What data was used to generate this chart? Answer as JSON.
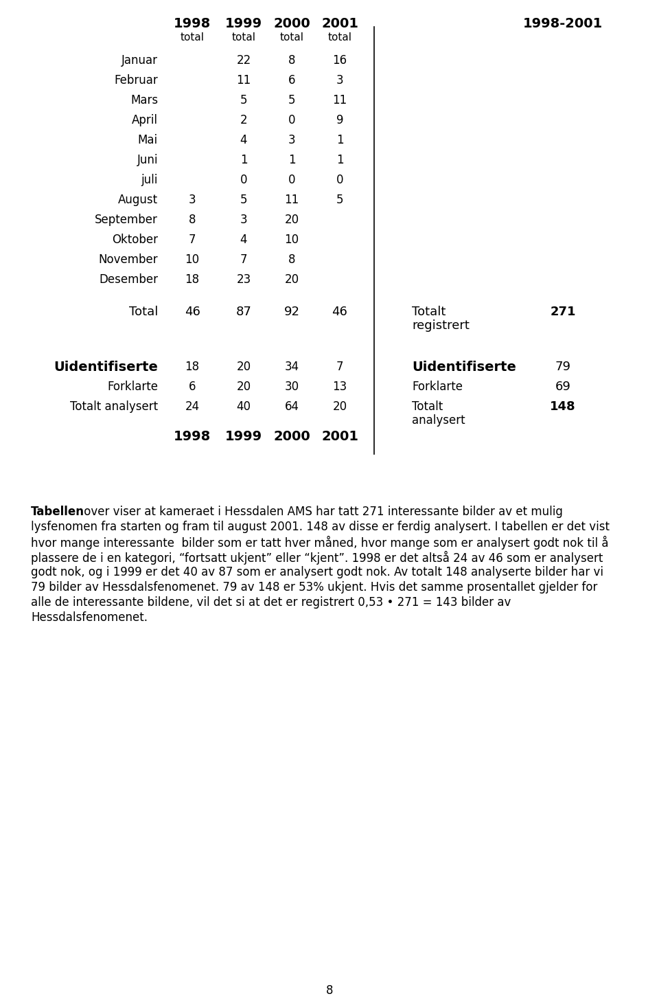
{
  "bg_color": "#ffffff",
  "text_color": "#000000",
  "page_number": "8",
  "table": {
    "months": [
      "Januar",
      "Februar",
      "Mars",
      "April",
      "Mai",
      "Juni",
      "juli",
      "August",
      "September",
      "Oktober",
      "November",
      "Desember"
    ],
    "data_1998": [
      "",
      "",
      "",
      "",
      "",
      "",
      "",
      "3",
      "8",
      "7",
      "10",
      "18"
    ],
    "data_1999": [
      "22",
      "11",
      "5",
      "2",
      "4",
      "1",
      "0",
      "5",
      "3",
      "4",
      "7",
      "23"
    ],
    "data_2000": [
      "8",
      "6",
      "5",
      "0",
      "3",
      "1",
      "0",
      "11",
      "20",
      "10",
      "8",
      "20"
    ],
    "data_2001": [
      "16",
      "3",
      "11",
      "9",
      "1",
      "1",
      "0",
      "5",
      "",
      "",
      "",
      ""
    ],
    "total_1998": "46",
    "total_1999": "87",
    "total_2000": "92",
    "total_2001": "46",
    "right_total_value": "271",
    "uidentifiserte_1998": "18",
    "uidentifiserte_1999": "20",
    "uidentifiserte_2000": "34",
    "uidentifiserte_2001": "7",
    "right_uidentifiserte_value": "79",
    "forklarte_1998": "6",
    "forklarte_1999": "20",
    "forklarte_2000": "30",
    "forklarte_2001": "13",
    "right_forklarte_value": "69",
    "totalt_analysert_1998": "24",
    "totalt_analysert_1999": "40",
    "totalt_analysert_2000": "64",
    "totalt_analysert_2001": "20",
    "right_totalt_analysert_value": "148"
  },
  "paragraph_lines": [
    "Tabellen over viser at kameraet i Hessdalen AMS har tatt 271 interessante bilder av et mulig",
    "lysfenomen fra starten og fram til august 2001. 148 av disse er ferdig analysert. I tabellen er det vist",
    "hvor mange interessante  bilder som er tatt hver måned, hvor mange som er analysert godt nok til å",
    "plassere de i en kategori, “fortsatt ukjent” eller “kjent”. 1998 er det altså 24 av 46 som er analysert",
    "godt nok, og i 1999 er det 40 av 87 som er analysert godt nok. Av totalt 148 analyserte bilder har vi",
    "79 bilder av Hessdalsfenomenet. 79 av 148 er 53% ukjent. Hvis det samme prosentallet gjelder for",
    "alle de interessante bildene, vil det si at det er registrert 0,53 • 271 = 143 bilder av",
    "Hessdalsfenomenet."
  ],
  "font_size_header_year": 14,
  "font_size_sub": 11,
  "font_size_data": 12,
  "font_size_total": 13,
  "font_size_uid": 14,
  "font_size_paragraph": 12
}
